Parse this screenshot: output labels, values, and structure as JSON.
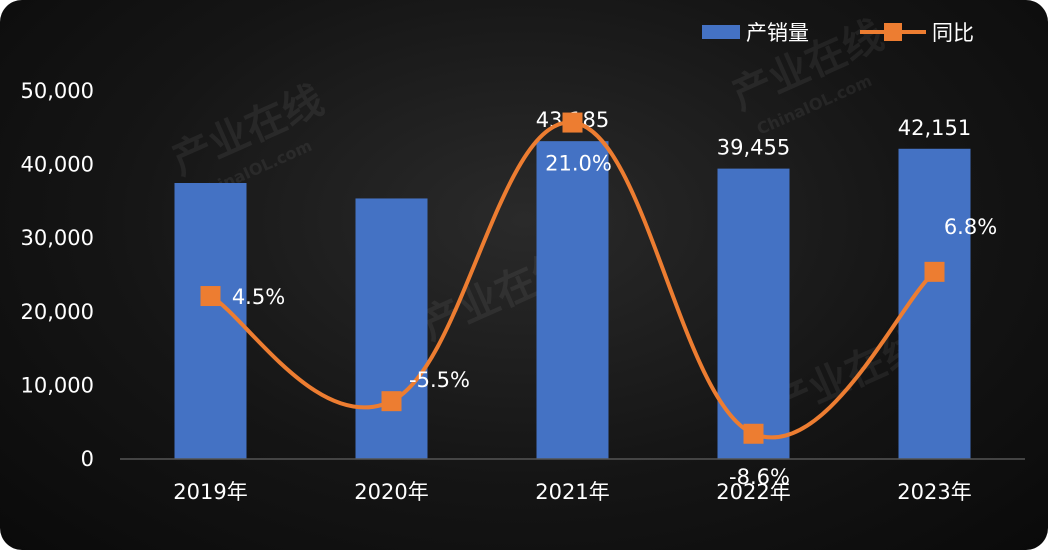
{
  "chart_data": {
    "type": "bar",
    "categories": [
      "2019年",
      "2020年",
      "2021年",
      "2022年",
      "2023年"
    ],
    "series": [
      {
        "name": "产销量",
        "type": "bar",
        "axis": "left",
        "values": [
          37500,
          35400,
          43185,
          39455,
          42151
        ],
        "labels": [
          "",
          "",
          "43,185",
          "39,455",
          "42,151"
        ]
      },
      {
        "name": "同比",
        "type": "line",
        "axis": "right",
        "values": [
          4.5,
          -5.5,
          21.0,
          -8.6,
          6.8
        ],
        "labels": [
          "4.5%",
          "-5.5%",
          "21.0%",
          "-8.6%",
          "6.8%"
        ]
      }
    ],
    "ylim": [
      0,
      50000
    ],
    "yticks": [
      "0",
      "10,000",
      "20,000",
      "30,000",
      "40,000",
      "50,000"
    ],
    "y2lim": [
      -11,
      24
    ],
    "legend": "top-right",
    "colors": {
      "bar": "#4472c4",
      "line": "#ed7d31",
      "background": "#141414"
    }
  }
}
